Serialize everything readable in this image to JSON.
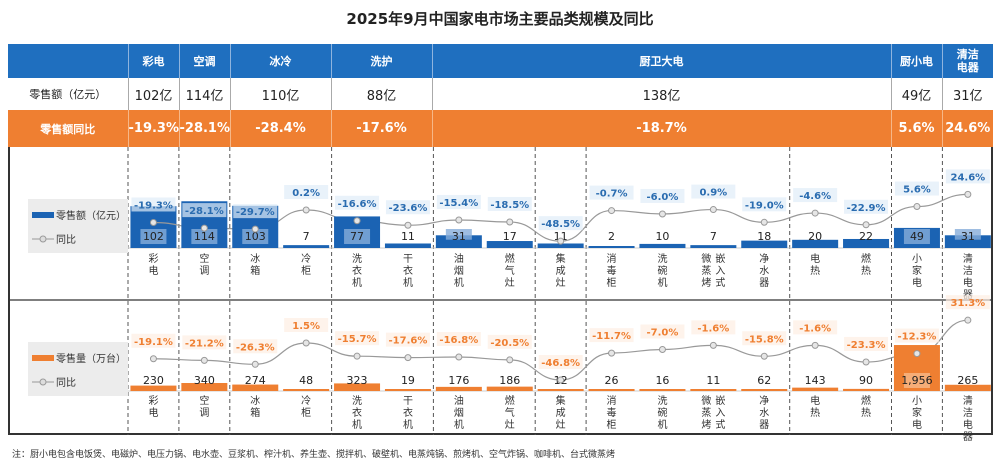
{
  "title": "2025年9月中国家电市场主要品类规模及同比",
  "table": {
    "header": [
      "",
      "彩电",
      "空调",
      "冰冷",
      "洗护",
      "厨卫大电",
      "厨小电",
      "清洁\n电器"
    ],
    "retail_row": [
      "零售额（亿元）",
      "102亿",
      "114亿",
      "110亿",
      "88亿",
      "138亿",
      "49亿",
      "31亿"
    ],
    "yoy_row": [
      "零售额同比",
      "-19.3%",
      "-28.1%",
      "-28.4%",
      "-17.6%",
      "-18.7%",
      "5.6%",
      "24.6%"
    ]
  },
  "colors": {
    "header_blue": "#1f6fbf",
    "bar_blue": "#1b63b3",
    "orange": "#ef7f31",
    "line": "#999999"
  },
  "chart_data": [
    {
      "type": "bar+line",
      "legend": [
        "零售额（亿元）",
        "同比"
      ],
      "categories": [
        "彩电",
        "空调",
        "冰箱",
        "冷柜",
        "洗衣机",
        "干衣机",
        "油烟机",
        "燃气灶",
        "集成灶",
        "消毒柜",
        "洗碗机",
        "微蒸烤 嵌入式",
        "净水器",
        "电热",
        "燃热",
        "小家电",
        "清洁电器"
      ],
      "values": [
        102,
        114,
        103,
        7,
        77,
        11,
        31,
        17,
        11,
        2,
        10,
        7,
        18,
        20,
        22,
        49,
        31
      ],
      "yoy": [
        "-19.3%",
        "-28.1%",
        "-29.7%",
        "0.2%",
        "-16.6%",
        "-23.6%",
        "-15.4%",
        "-18.5%",
        "-48.5%",
        "-0.7%",
        "-6.0%",
        "0.9%",
        "-19.0%",
        "-4.6%",
        "-22.9%",
        "5.6%",
        "24.6%"
      ]
    },
    {
      "type": "bar+line",
      "legend": [
        "零售量（万台）",
        "同比"
      ],
      "categories": [
        "彩电",
        "空调",
        "冰箱",
        "冷柜",
        "洗衣机",
        "干衣机",
        "油烟机",
        "燃气灶",
        "集成灶",
        "消毒柜",
        "洗碗机",
        "微蒸烤 嵌入式",
        "净水器",
        "电热",
        "燃热",
        "小家电",
        "清洁电器"
      ],
      "values": [
        "230",
        "340",
        "274",
        "48",
        "323",
        "19",
        "176",
        "186",
        "12",
        "26",
        "16",
        "11",
        "62",
        "143",
        "90",
        "1,956",
        "265"
      ],
      "yoy": [
        "-19.1%",
        "-21.2%",
        "-26.3%",
        "1.5%",
        "-15.7%",
        "-17.6%",
        "-16.8%",
        "-20.5%",
        "-46.8%",
        "-11.7%",
        "-7.0%",
        "-1.6%",
        "-15.8%",
        "-1.6%",
        "-23.3%",
        "-12.3%",
        "31.3%"
      ]
    }
  ],
  "note": "注：厨小电包含电饭煲、电磁炉、电压力锅、电水壶、豆浆机、榨汁机、养生壶、搅拌机、破壁机、电蒸炖锅、煎烤机、空气炸锅、咖啡机、台式微蒸烤"
}
